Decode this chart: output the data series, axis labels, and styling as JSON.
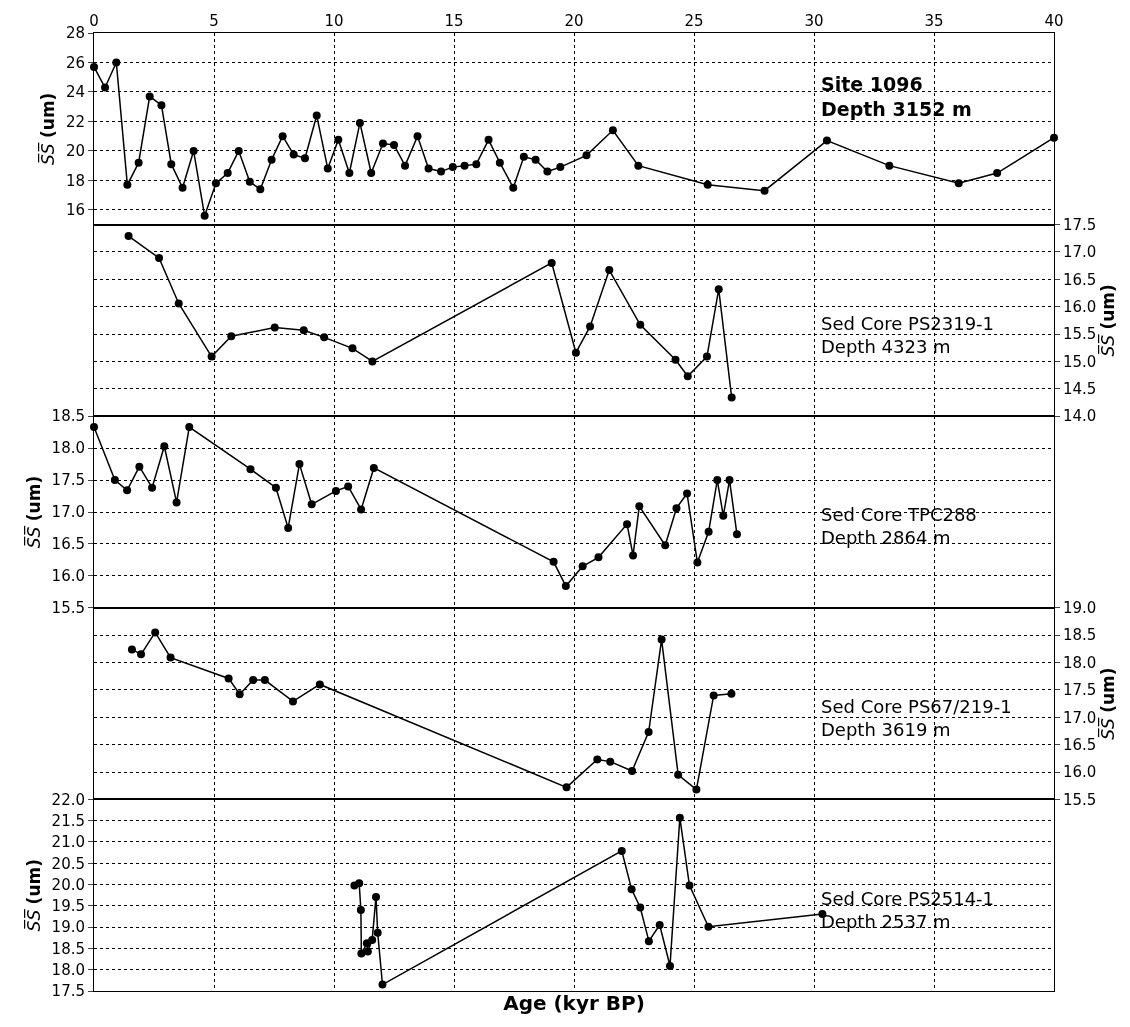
{
  "chart_data": [
    {
      "type": "line",
      "ylabel": "S̅S̅ (um)",
      "xlim": [
        0,
        40
      ],
      "xticks": [
        0,
        5,
        10,
        15,
        20,
        25,
        30,
        35,
        40
      ],
      "ylim": [
        15,
        28
      ],
      "yticks": [
        16,
        18,
        20,
        22,
        24,
        26,
        28
      ],
      "grid": true,
      "marker": "circle",
      "line_style": "solid",
      "annotations": [
        "Site 1096\nDepth 3152 m"
      ],
      "series": [
        {
          "color": "#000000",
          "x": [
            0,
            0.46,
            0.93,
            1.39,
            1.86,
            2.32,
            2.81,
            3.22,
            3.69,
            4.15,
            4.61,
            5.08,
            5.57,
            6.03,
            6.49,
            6.93,
            7.4,
            7.86,
            8.32,
            8.79,
            9.28,
            9.74,
            10.18,
            10.64,
            11.08,
            11.55,
            12.04,
            12.5,
            12.96,
            13.48,
            13.94,
            14.46,
            14.95,
            15.44,
            15.93,
            16.44,
            16.91,
            17.47,
            17.91,
            18.4,
            18.89,
            19.43,
            20.52,
            21.62,
            22.68,
            25.57,
            27.94,
            30.54,
            33.14,
            36.03,
            37.63,
            40
          ],
          "values": [
            25.7,
            24.3,
            26.0,
            17.7,
            19.2,
            23.7,
            23.1,
            19.1,
            17.5,
            20.0,
            15.6,
            17.8,
            18.5,
            20.0,
            17.9,
            17.4,
            19.4,
            21.0,
            19.75,
            19.5,
            22.4,
            18.8,
            20.75,
            18.5,
            21.9,
            18.5,
            20.5,
            20.4,
            19.0,
            21.0,
            18.8,
            18.6,
            18.9,
            19.0,
            19.1,
            20.75,
            19.2,
            17.5,
            19.6,
            19.4,
            18.6,
            18.9,
            19.7,
            21.4,
            19.0,
            17.7,
            17.3,
            20.7,
            19.0,
            17.8,
            18.5,
            20.9
          ]
        }
      ]
    },
    {
      "type": "line",
      "y2label": "S̅S̅ (um)",
      "xlim": [
        0,
        40
      ],
      "xticks": [
        0,
        5,
        10,
        15,
        20,
        25,
        30,
        35,
        40
      ],
      "y2lim": [
        14.0,
        17.5
      ],
      "y2ticks": [
        {
          "value": 14,
          "label": "14.0"
        },
        14.5,
        {
          "value": 15,
          "label": "15.0"
        },
        15.5,
        {
          "value": 16,
          "label": "16.0"
        },
        16.5,
        {
          "value": 17,
          "label": "17.0"
        },
        17.5
      ],
      "tick_labels": "y",
      "grid": true,
      "marker": "circle",
      "line_style": "solid",
      "annotations": [
        "Sed Core PS2319-1\nDepth 4323 m"
      ],
      "series": [
        {
          "color": "#000000",
          "axis": "y2",
          "x": [
            1.44,
            2.71,
            3.53,
            4.9,
            5.72,
            7.53,
            8.74,
            9.59,
            10.77,
            11.6,
            19.07,
            20.08,
            20.67,
            21.47,
            22.76,
            24.23,
            24.74,
            25.54,
            26.03,
            26.57
          ],
          "values": [
            17.29,
            16.89,
            16.06,
            15.09,
            15.46,
            15.62,
            15.57,
            15.44,
            15.24,
            15.0,
            16.8,
            15.16,
            15.64,
            16.67,
            15.67,
            15.03,
            14.73,
            15.09,
            16.32,
            14.34
          ]
        }
      ]
    },
    {
      "type": "line",
      "ylabel": "S̅S̅ (um)",
      "xlim": [
        0,
        40
      ],
      "xticks": [
        0,
        5,
        10,
        15,
        20,
        25,
        30,
        35,
        40
      ],
      "ylim": [
        15.5,
        18.5
      ],
      "yticks": [
        15.5,
        {
          "value": 16,
          "label": "16.0"
        },
        16.5,
        {
          "value": 17,
          "label": "17.0"
        },
        17.5,
        {
          "value": 18,
          "label": "18.0"
        },
        18.5
      ],
      "tick_labels": "y",
      "grid": true,
      "marker": "circle",
      "line_style": "solid",
      "annotations": [
        "Sed Core TPC288\nDepth 2864 m"
      ],
      "series": [
        {
          "color": "#000000",
          "x": [
            0,
            0.87,
            1.38,
            1.89,
            2.42,
            2.93,
            3.44,
            3.97,
            6.52,
            7.58,
            8.09,
            8.56,
            9.07,
            10.08,
            10.59,
            11.13,
            11.66,
            19.15,
            19.66,
            20.36,
            21.02,
            22.21,
            22.46,
            22.72,
            23.8,
            24.27,
            24.71,
            25.14,
            25.61,
            25.97,
            26.22,
            26.48,
            26.79
          ],
          "values": [
            18.33,
            17.5,
            17.34,
            17.71,
            17.38,
            18.03,
            17.15,
            18.33,
            17.67,
            17.38,
            16.75,
            17.75,
            17.12,
            17.33,
            17.4,
            17.04,
            17.69,
            16.22,
            15.84,
            16.15,
            16.29,
            16.81,
            16.32,
            17.09,
            16.48,
            17.06,
            17.29,
            16.21,
            16.69,
            17.5,
            16.94,
            17.5,
            16.65
          ]
        }
      ]
    },
    {
      "type": "line",
      "y2label": "S̅S̅ (um)",
      "xlim": [
        0,
        40
      ],
      "xticks": [
        0,
        5,
        10,
        15,
        20,
        25,
        30,
        35,
        40
      ],
      "y2lim": [
        15.5,
        19.0
      ],
      "y2ticks": [
        15.5,
        {
          "value": 16,
          "label": "16.0"
        },
        16.5,
        {
          "value": 17,
          "label": "17.0"
        },
        17.5,
        {
          "value": 18,
          "label": "18.0"
        },
        18.5,
        {
          "value": 19,
          "label": "19.0"
        }
      ],
      "tick_labels": "y",
      "grid": true,
      "marker": "circle",
      "line_style": "solid",
      "annotations": [
        "Sed Core PS67/219-1\nDepth 3619 m"
      ],
      "series": [
        {
          "color": "#000000",
          "axis": "y2",
          "x": [
            1.58,
            1.96,
            2.55,
            3.19,
            5.61,
            6.07,
            6.63,
            7.12,
            8.29,
            9.41,
            19.69,
            20.97,
            21.51,
            22.42,
            23.11,
            23.65,
            24.34,
            25.1,
            25.82,
            26.56
          ],
          "values": [
            18.24,
            18.15,
            18.55,
            18.09,
            17.71,
            17.42,
            17.68,
            17.68,
            17.29,
            17.6,
            15.72,
            16.23,
            16.19,
            16.02,
            16.73,
            18.42,
            15.95,
            15.68,
            17.4,
            17.43
          ]
        }
      ]
    },
    {
      "type": "line",
      "ylabel": "S̅S̅ (um)",
      "xlabel": "Age (kyr BP)",
      "xlim": [
        0,
        40
      ],
      "xticks": [
        0,
        5,
        10,
        15,
        20,
        25,
        30,
        35,
        40
      ],
      "ylim": [
        17.5,
        22.0
      ],
      "yticks": [
        17.5,
        {
          "value": 18,
          "label": "18.0"
        },
        18.5,
        {
          "value": 19,
          "label": "19.0"
        },
        19.5,
        {
          "value": 20,
          "label": "20.0"
        },
        20.5,
        {
          "value": 21,
          "label": "21.0"
        },
        21.5,
        {
          "value": 22,
          "label": "22.0"
        }
      ],
      "tick_labels": "y",
      "grid": true,
      "marker": "circle",
      "line_style": "solid",
      "annotations": [
        "Sed Core PS2514-1\nDepth 2537 m"
      ],
      "series": [
        {
          "color": "#000000",
          "x": [
            10.85,
            11.05,
            11.12,
            11.14,
            11.37,
            11.41,
            11.59,
            11.75,
            11.82,
            12.02,
            21.99,
            22.4,
            22.76,
            23.12,
            23.57,
            24.0,
            24.41,
            24.81,
            25.6,
            30.35
          ],
          "values": [
            19.98,
            20.03,
            19.4,
            18.38,
            18.62,
            18.43,
            18.7,
            19.71,
            18.87,
            17.65,
            20.79,
            19.89,
            19.46,
            18.67,
            19.05,
            18.09,
            21.57,
            19.98,
            19.01,
            19.31
          ]
        }
      ]
    }
  ]
}
